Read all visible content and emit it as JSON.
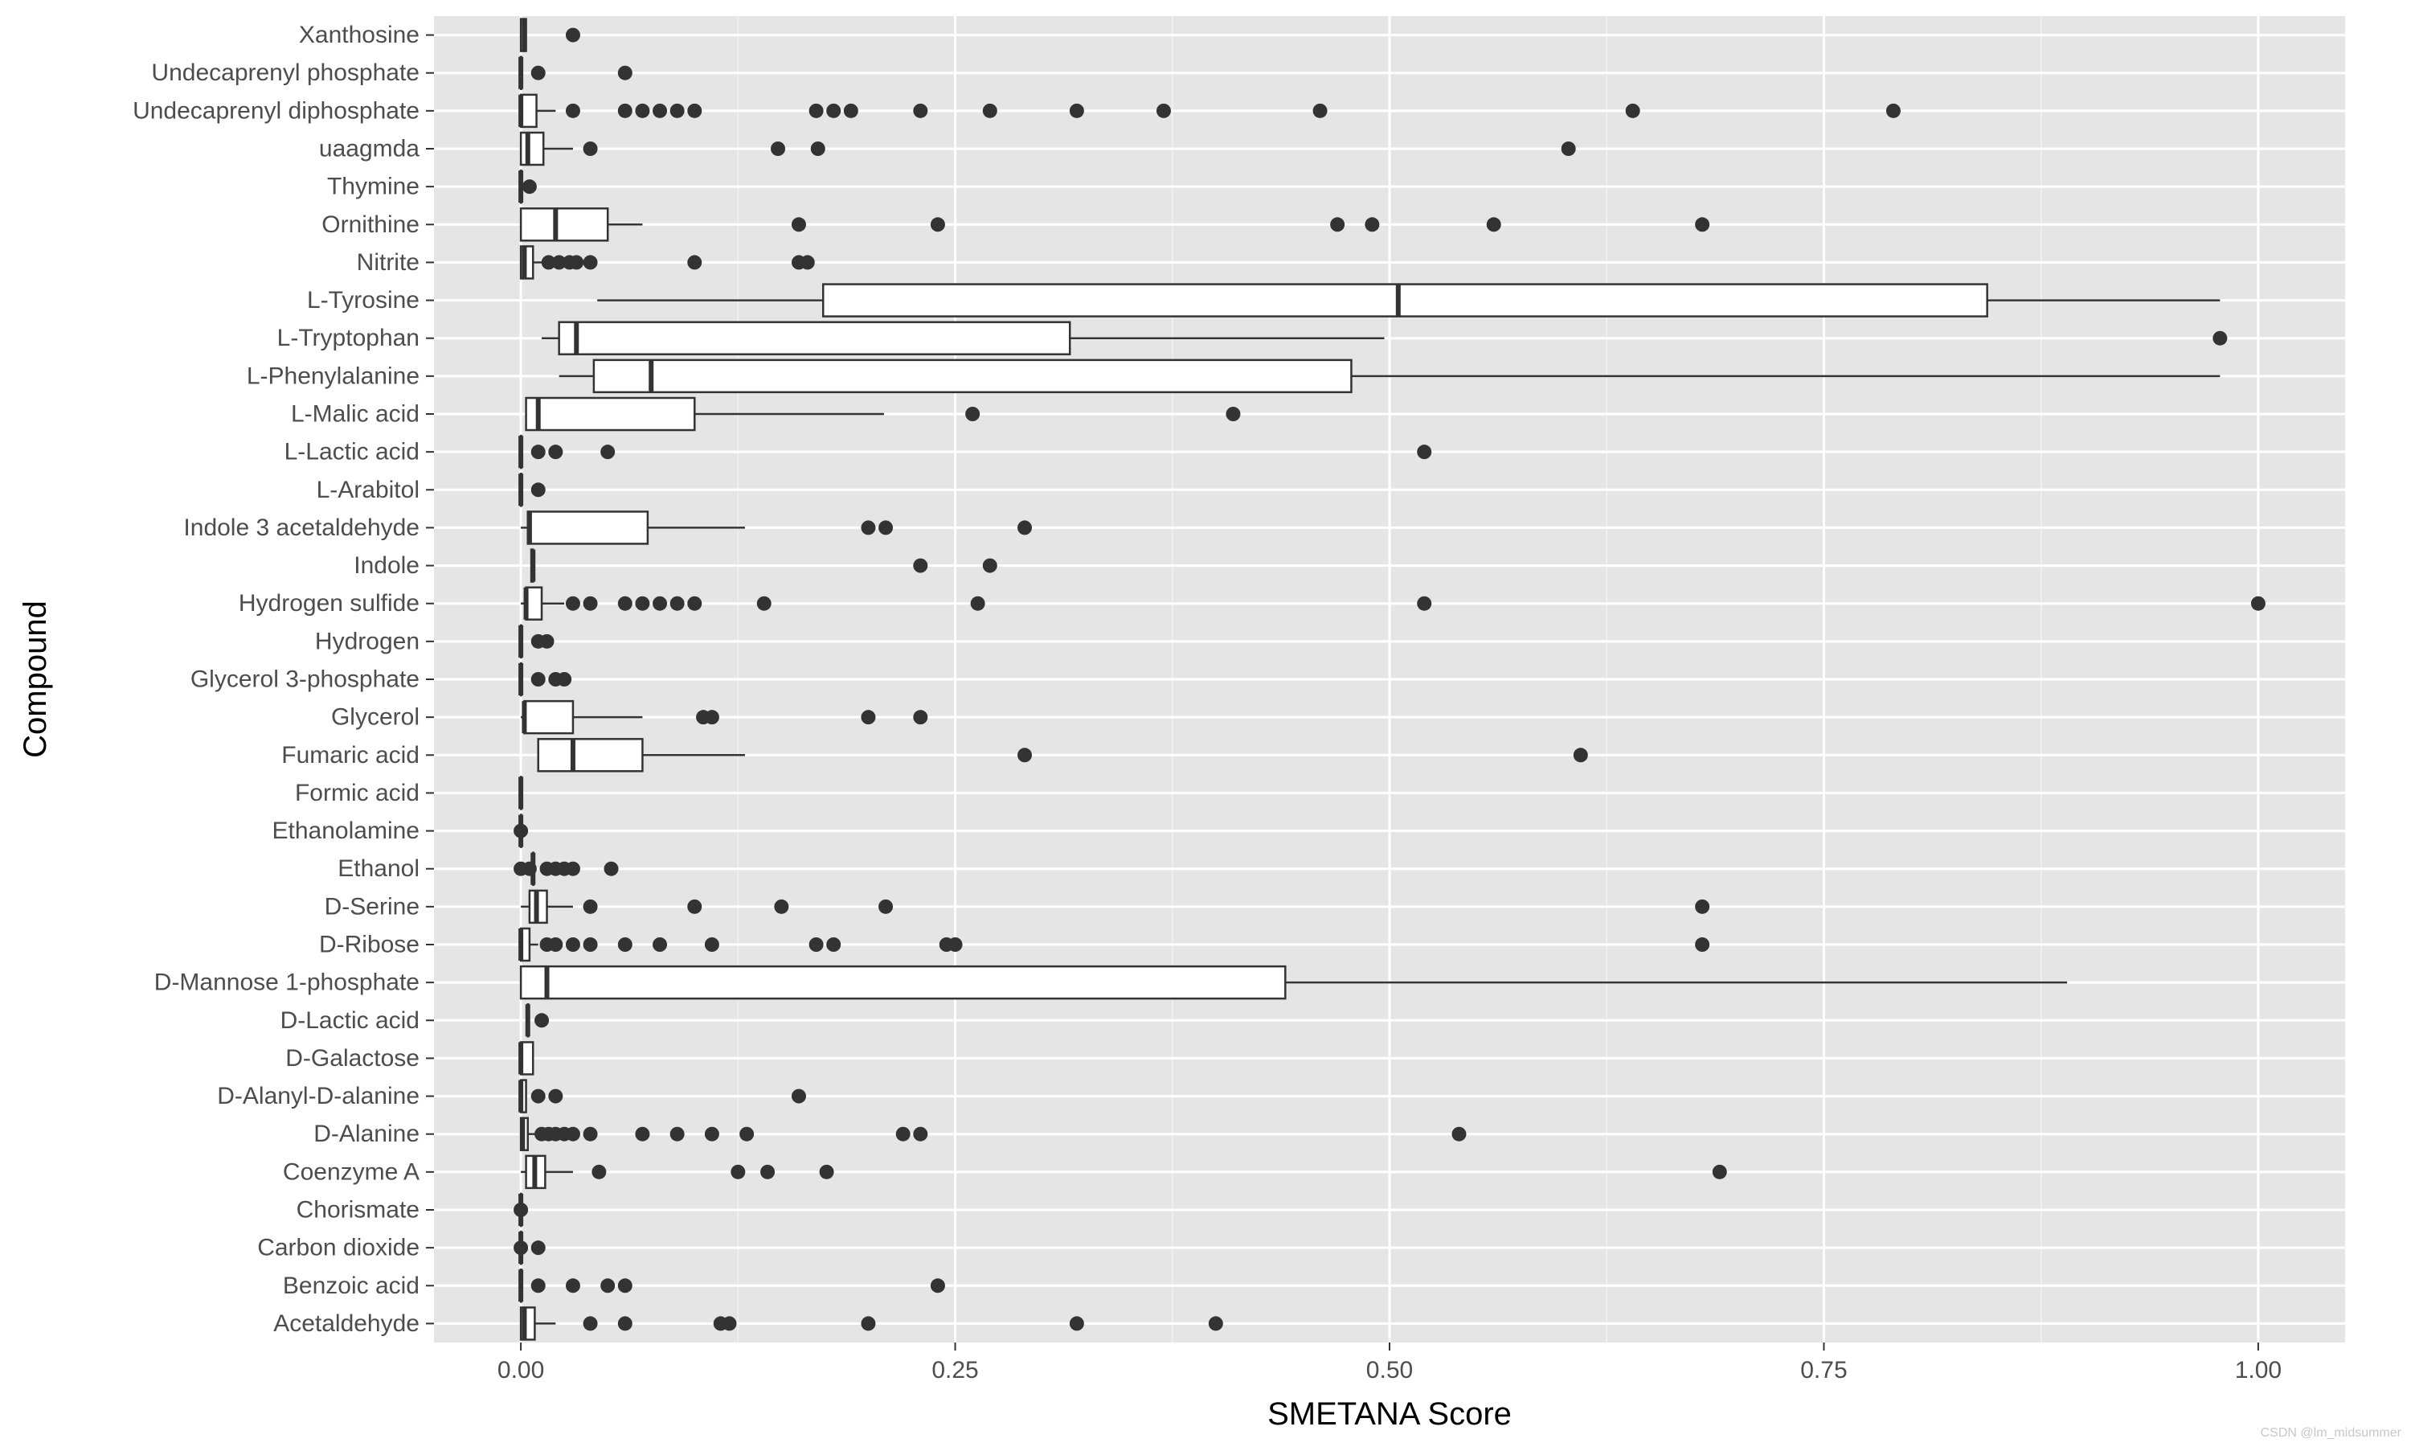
{
  "chart_data": {
    "type": "boxplot",
    "xlabel": "SMETANA Score",
    "ylabel": "Compound",
    "xlim": [
      -0.05,
      1.05
    ],
    "xticks": [
      0,
      0.25,
      0.5,
      0.75,
      1
    ],
    "xtick_labels": [
      "0.00",
      "0.25",
      "0.50",
      "0.75",
      "1.00"
    ],
    "grid": true,
    "background": "#e5e5e5",
    "categories": [
      "Xanthosine",
      "Undecaprenyl phosphate",
      "Undecaprenyl diphosphate",
      "uaagmda",
      "Thymine",
      "Ornithine",
      "Nitrite",
      "L-Tyrosine",
      "L-Tryptophan",
      "L-Phenylalanine",
      "L-Malic acid",
      "L-Lactic acid",
      "L-Arabitol",
      "Indole 3 acetaldehyde",
      "Indole",
      "Hydrogen sulfide",
      "Hydrogen",
      "Glycerol 3-phosphate",
      "Glycerol",
      "Fumaric acid",
      "Formic acid",
      "Ethanolamine",
      "Ethanol",
      "D-Serine",
      "D-Ribose",
      "D-Mannose 1-phosphate",
      "D-Lactic acid",
      "D-Galactose",
      "D-Alanyl-D-alanine",
      "D-Alanine",
      "Coenzyme A",
      "Chorismate",
      "Carbon dioxide",
      "Benzoic acid",
      "Acetaldehyde"
    ],
    "boxes": [
      {
        "min": 0.0,
        "q1": 0.0,
        "median": 0.002,
        "q3": 0.003,
        "max": 0.003,
        "outliers": [
          0.03
        ]
      },
      {
        "min": 0.0,
        "q1": 0.0,
        "median": 0.0,
        "q3": 0.0,
        "max": 0.0,
        "outliers": [
          0.01,
          0.06
        ]
      },
      {
        "min": 0.0,
        "q1": 0.0,
        "median": 0.0,
        "q3": 0.009,
        "max": 0.02,
        "outliers": [
          0.03,
          0.06,
          0.07,
          0.08,
          0.09,
          0.1,
          0.17,
          0.18,
          0.19,
          0.23,
          0.27,
          0.32,
          0.37,
          0.46,
          0.64,
          0.79
        ]
      },
      {
        "min": 0.0,
        "q1": 0.0,
        "median": 0.004,
        "q3": 0.013,
        "max": 0.03,
        "outliers": [
          0.04,
          0.148,
          0.171,
          0.603
        ]
      },
      {
        "min": 0.0,
        "q1": 0.0,
        "median": 0.0,
        "q3": 0.0,
        "max": 0.0,
        "outliers": [
          0.005
        ]
      },
      {
        "min": 0.0,
        "q1": 0.0,
        "median": 0.02,
        "q3": 0.05,
        "max": 0.07,
        "outliers": [
          0.16,
          0.24,
          0.47,
          0.49,
          0.56,
          0.68
        ]
      },
      {
        "min": 0.0,
        "q1": 0.0,
        "median": 0.002,
        "q3": 0.007,
        "max": 0.012,
        "outliers": [
          0.016,
          0.022,
          0.028,
          0.032,
          0.04,
          0.1,
          0.16,
          0.165
        ]
      },
      {
        "min": 0.044,
        "q1": 0.174,
        "median": 0.505,
        "q3": 0.844,
        "max": 0.978,
        "outliers": []
      },
      {
        "min": 0.012,
        "q1": 0.022,
        "median": 0.032,
        "q3": 0.316,
        "max": 0.497,
        "outliers": [
          0.978
        ]
      },
      {
        "min": 0.022,
        "q1": 0.042,
        "median": 0.075,
        "q3": 0.478,
        "max": 0.978,
        "outliers": []
      },
      {
        "min": 0.003,
        "q1": 0.003,
        "median": 0.01,
        "q3": 0.1,
        "max": 0.209,
        "outliers": [
          0.26,
          0.41
        ]
      },
      {
        "min": 0.0,
        "q1": 0.0,
        "median": 0.0,
        "q3": 0.0,
        "max": 0.0,
        "outliers": [
          0.01,
          0.02,
          0.05,
          0.52
        ]
      },
      {
        "min": 0.0,
        "q1": 0.0,
        "median": 0.0,
        "q3": 0.0,
        "max": 0.0,
        "outliers": [
          0.01
        ]
      },
      {
        "min": 0.0,
        "q1": 0.004,
        "median": 0.005,
        "q3": 0.073,
        "max": 0.129,
        "outliers": [
          0.2,
          0.21,
          0.29
        ]
      },
      {
        "min": 0.006,
        "q1": 0.006,
        "median": 0.007,
        "q3": 0.007,
        "max": 0.007,
        "outliers": [
          0.23,
          0.27
        ]
      },
      {
        "min": 0.0,
        "q1": 0.003,
        "median": 0.003,
        "q3": 0.012,
        "max": 0.025,
        "outliers": [
          0.03,
          0.04,
          0.06,
          0.07,
          0.08,
          0.09,
          0.1,
          0.14,
          0.263,
          0.52,
          1.0
        ]
      },
      {
        "min": 0.0,
        "q1": 0.0,
        "median": 0.0,
        "q3": 0.0,
        "max": 0.0,
        "outliers": [
          0.01,
          0.015
        ]
      },
      {
        "min": 0.0,
        "q1": 0.0,
        "median": 0.0,
        "q3": 0.0,
        "max": 0.0,
        "outliers": [
          0.01,
          0.02,
          0.025
        ]
      },
      {
        "min": 0.0,
        "q1": 0.002,
        "median": 0.002,
        "q3": 0.03,
        "max": 0.07,
        "outliers": [
          0.105,
          0.11,
          0.2,
          0.23
        ]
      },
      {
        "min": 0.01,
        "q1": 0.01,
        "median": 0.03,
        "q3": 0.07,
        "max": 0.129,
        "outliers": [
          0.29,
          0.61
        ]
      },
      {
        "min": 0.0,
        "q1": 0.0,
        "median": 0.0,
        "q3": 0.0,
        "max": 0.0,
        "outliers": []
      },
      {
        "min": 0.0,
        "q1": 0.0,
        "median": 0.0,
        "q3": 0.0,
        "max": 0.0,
        "outliers": [
          0.0
        ]
      },
      {
        "min": 0.0,
        "q1": 0.007,
        "median": 0.007,
        "q3": 0.007,
        "max": 0.007,
        "outliers": [
          0.0,
          0.005,
          0.015,
          0.02,
          0.025,
          0.03,
          0.052
        ]
      },
      {
        "min": 0.0,
        "q1": 0.005,
        "median": 0.009,
        "q3": 0.015,
        "max": 0.03,
        "outliers": [
          0.04,
          0.1,
          0.15,
          0.21,
          0.68
        ]
      },
      {
        "min": 0.0,
        "q1": 0.0,
        "median": 0.0,
        "q3": 0.005,
        "max": 0.01,
        "outliers": [
          0.015,
          0.02,
          0.03,
          0.04,
          0.06,
          0.08,
          0.11,
          0.17,
          0.18,
          0.245,
          0.25,
          0.68
        ]
      },
      {
        "min": 0.0,
        "q1": 0.0,
        "median": 0.015,
        "q3": 0.44,
        "max": 0.89,
        "outliers": []
      },
      {
        "min": 0.004,
        "q1": 0.004,
        "median": 0.004,
        "q3": 0.004,
        "max": 0.004,
        "outliers": [
          0.012
        ]
      },
      {
        "min": 0.0,
        "q1": 0.0,
        "median": 0.0,
        "q3": 0.007,
        "max": 0.007,
        "outliers": []
      },
      {
        "min": 0.0,
        "q1": 0.0,
        "median": 0.0,
        "q3": 0.003,
        "max": 0.003,
        "outliers": [
          0.01,
          0.02,
          0.16
        ]
      },
      {
        "min": 0.0,
        "q1": 0.0,
        "median": 0.001,
        "q3": 0.004,
        "max": 0.008,
        "outliers": [
          0.012,
          0.016,
          0.02,
          0.025,
          0.03,
          0.04,
          0.07,
          0.09,
          0.11,
          0.13,
          0.22,
          0.23,
          0.54
        ]
      },
      {
        "min": 0.0,
        "q1": 0.003,
        "median": 0.008,
        "q3": 0.014,
        "max": 0.03,
        "outliers": [
          0.045,
          0.125,
          0.142,
          0.176,
          0.69
        ]
      },
      {
        "min": 0.0,
        "q1": 0.0,
        "median": 0.0,
        "q3": 0.0,
        "max": 0.0,
        "outliers": [
          0.0
        ]
      },
      {
        "min": 0.0,
        "q1": 0.0,
        "median": 0.0,
        "q3": 0.0,
        "max": 0.0,
        "outliers": [
          0.0,
          0.01
        ]
      },
      {
        "min": 0.0,
        "q1": 0.0,
        "median": 0.0,
        "q3": 0.0,
        "max": 0.0,
        "outliers": [
          0.01,
          0.03,
          0.05,
          0.06,
          0.24
        ]
      },
      {
        "min": 0.0,
        "q1": 0.0,
        "median": 0.002,
        "q3": 0.008,
        "max": 0.02,
        "outliers": [
          0.04,
          0.06,
          0.115,
          0.12,
          0.2,
          0.32,
          0.4
        ]
      }
    ]
  },
  "watermark": "CSDN @lm_midsummer"
}
